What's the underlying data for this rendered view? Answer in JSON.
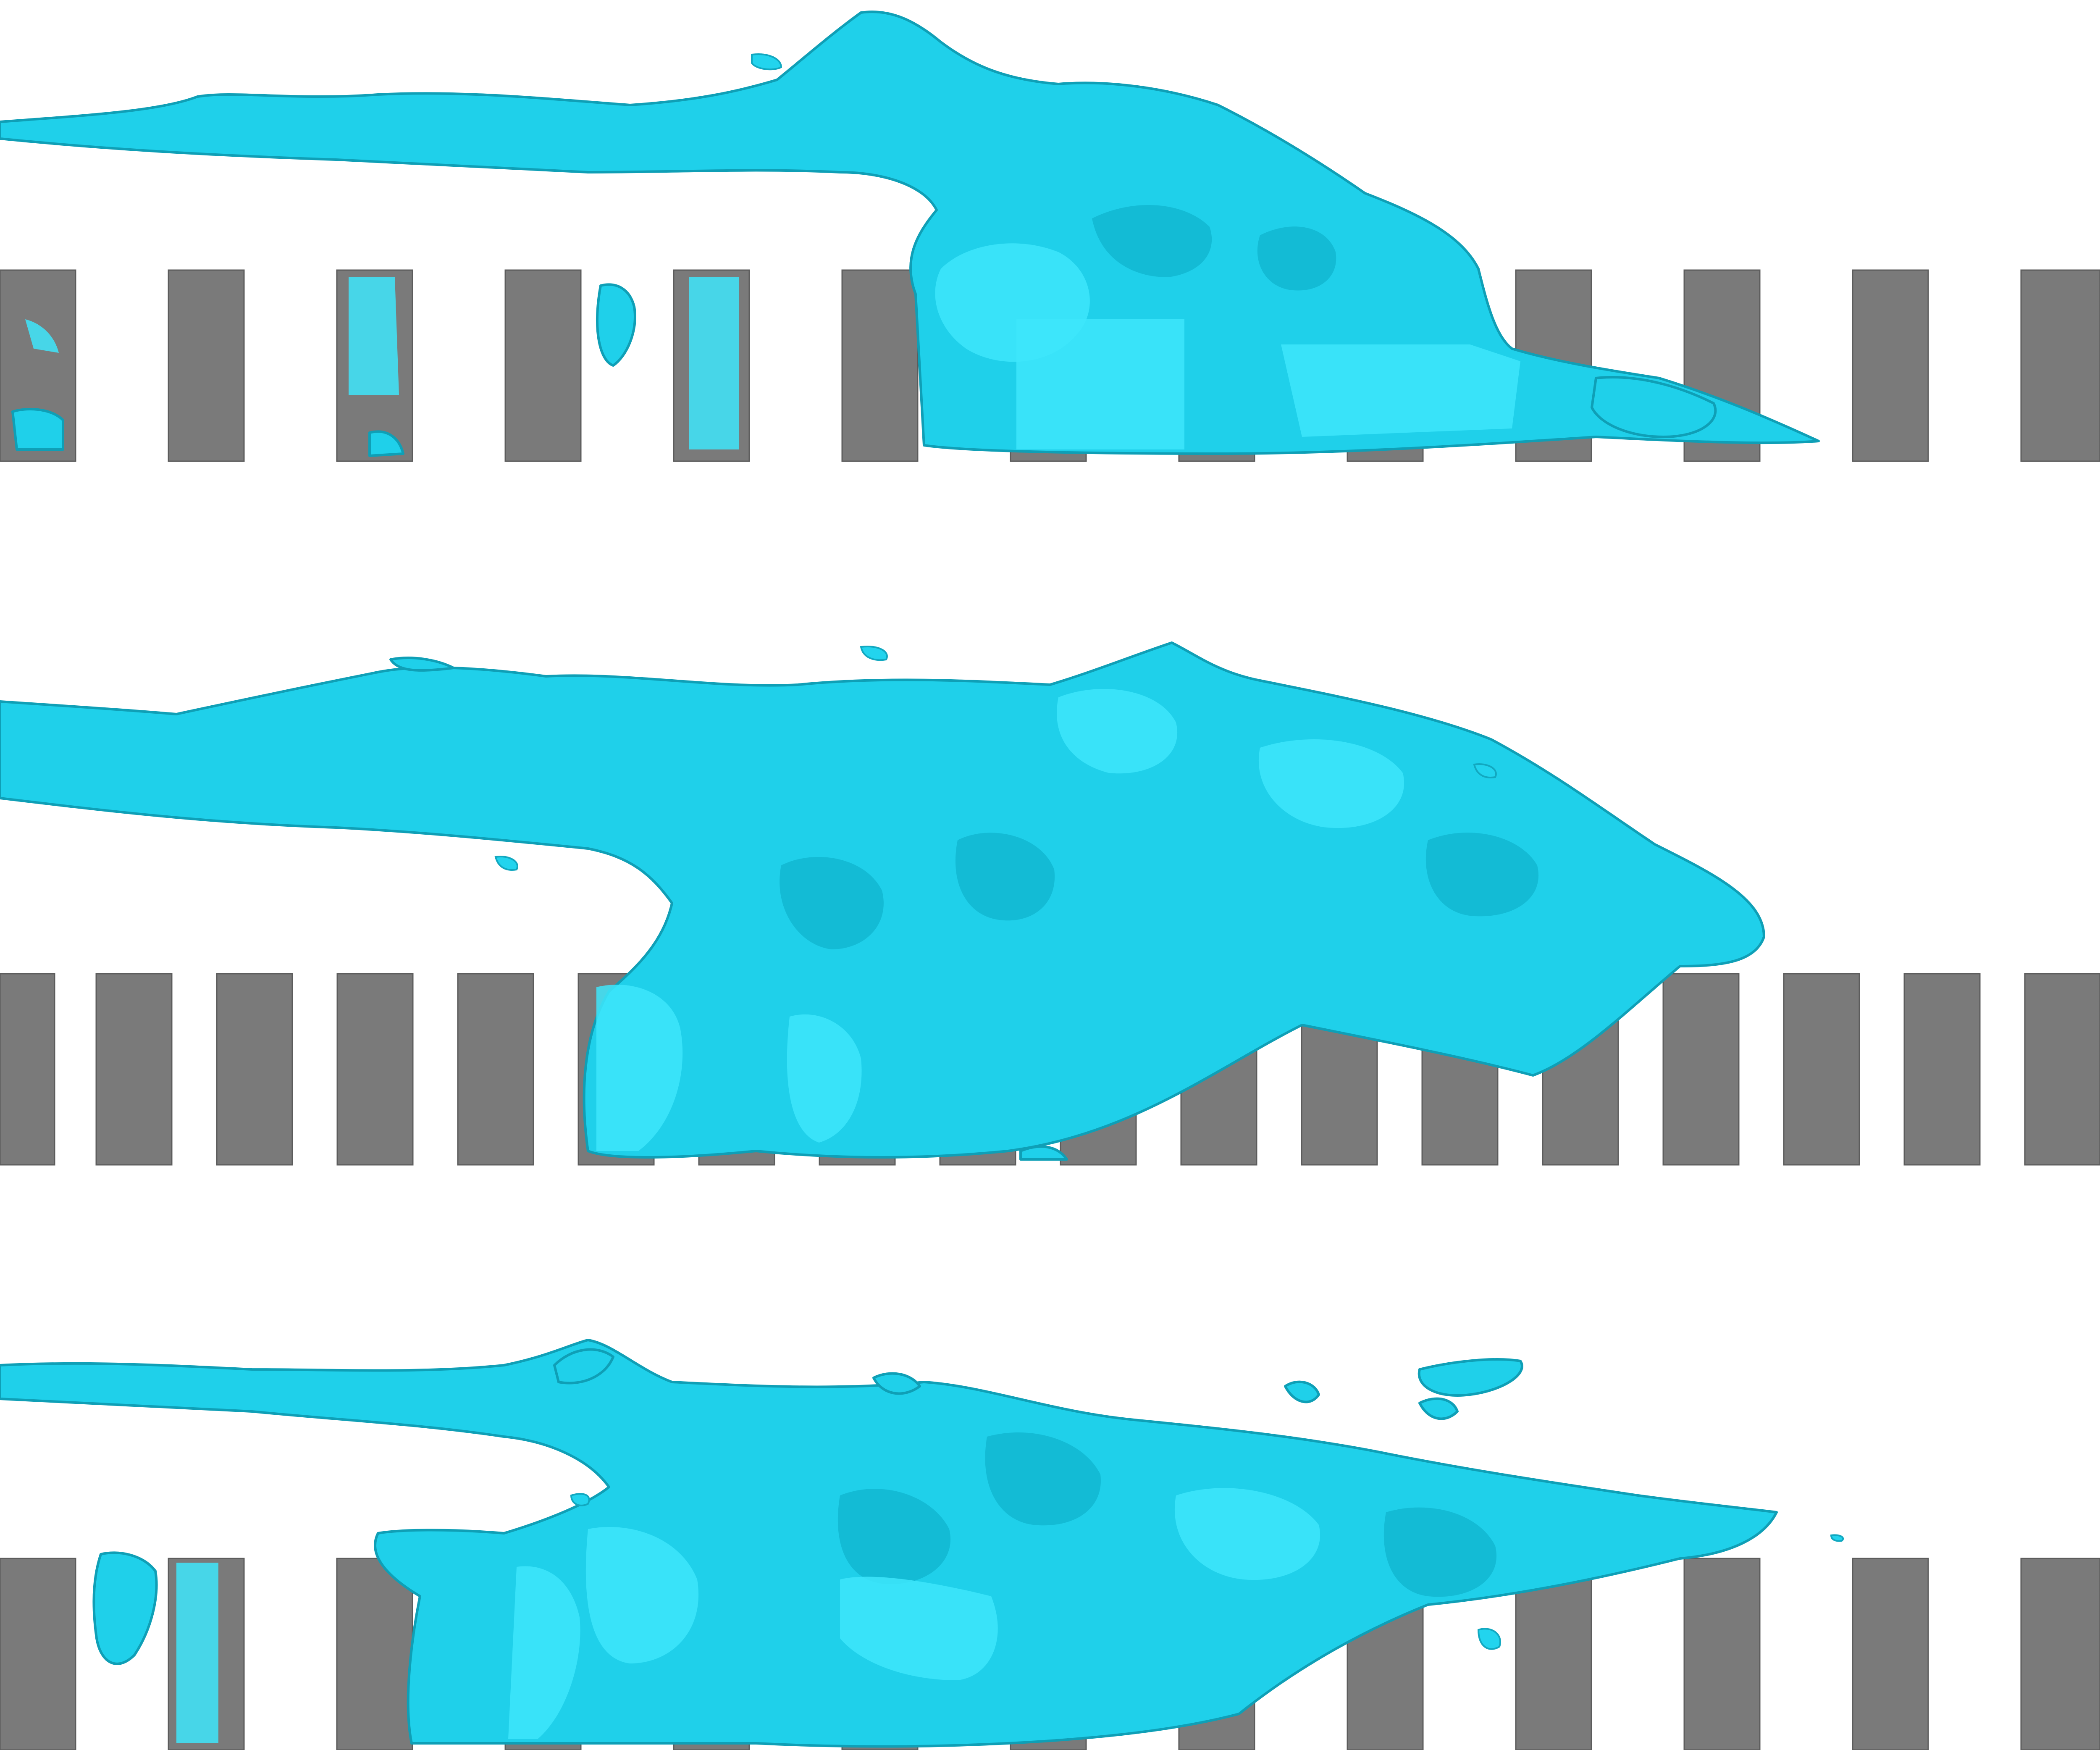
{
  "figure": {
    "panels": [
      {
        "id": "top",
        "block_color": "#7a7a7a",
        "isosurface_color": "#1fd0ea"
      },
      {
        "id": "middle",
        "block_color": "#7a7a7a",
        "isosurface_color": "#1fd0ea"
      },
      {
        "id": "bottom",
        "block_color": "#7a7a7a",
        "isosurface_color": "#1fd0ea"
      }
    ],
    "colors": {
      "background": "#ffffff",
      "obstacle": "#7a7a7a",
      "vortex": "#1fd0ea",
      "vortex_edge": "#0f9fb6"
    }
  }
}
